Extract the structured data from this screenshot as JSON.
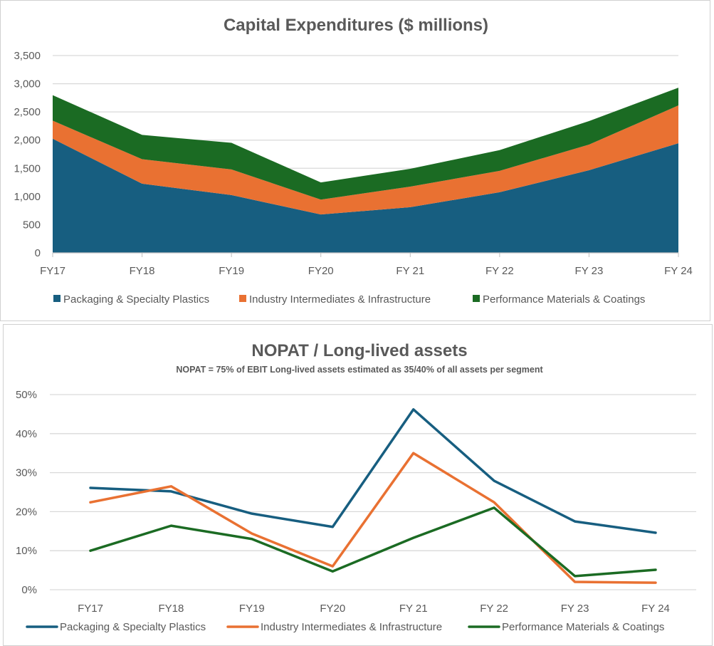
{
  "colors": {
    "packaging": "#175E80",
    "industry": "#E97132",
    "performance": "#1B6B23",
    "grid": "#d9d9d9"
  },
  "chart_data": [
    {
      "type": "area",
      "stacked": true,
      "title": "Capital Expenditures ($ millions)",
      "categories": [
        "FY17",
        "FY18",
        "FY19",
        "FY20",
        "FY 21",
        "FY 22",
        "FY 23",
        "FY 24"
      ],
      "ylim": [
        0,
        3500
      ],
      "yticks": [
        "0",
        "500",
        "1,000",
        "1,500",
        "2,000",
        "2,500",
        "3,000",
        "3,500"
      ],
      "legend_position": "bottom",
      "series": [
        {
          "name": "Packaging & Specialty Plastics",
          "values": [
            2025,
            1227,
            1025,
            680,
            810,
            1075,
            1465,
            1945
          ]
        },
        {
          "name": "Industry Intermediates & Infrastructure",
          "values": [
            320,
            434,
            455,
            265,
            365,
            380,
            455,
            670
          ]
        },
        {
          "name": "Performance Materials & Coatings",
          "values": [
            452,
            431,
            472,
            304,
            316,
            367,
            418,
            315
          ]
        }
      ]
    },
    {
      "type": "line",
      "title": "NOPAT / Long-lived assets",
      "subtitle": "NOPAT = 75% of EBIT   Long-lived assets estimated as 35/40% of all assets per segment",
      "categories": [
        "FY17",
        "FY18",
        "FY19",
        "FY20",
        "FY 21",
        "FY 22",
        "FY 23",
        "FY 24"
      ],
      "ylim": [
        0,
        50
      ],
      "yticks": [
        "0%",
        "10%",
        "20%",
        "30%",
        "40%",
        "50%"
      ],
      "legend_position": "bottom",
      "series": [
        {
          "name": "Packaging & Specialty Plastics",
          "values": [
            26.1,
            25.2,
            19.5,
            16.1,
            46.2,
            27.9,
            17.5,
            14.6
          ]
        },
        {
          "name": "Industry Intermediates & Infrastructure",
          "values": [
            22.4,
            26.5,
            14.4,
            6.0,
            35.0,
            22.4,
            2.0,
            1.8
          ]
        },
        {
          "name": "Performance Materials & Coatings",
          "values": [
            10.0,
            16.4,
            13.0,
            4.7,
            13.3,
            21.0,
            3.5,
            5.1
          ]
        }
      ]
    }
  ]
}
